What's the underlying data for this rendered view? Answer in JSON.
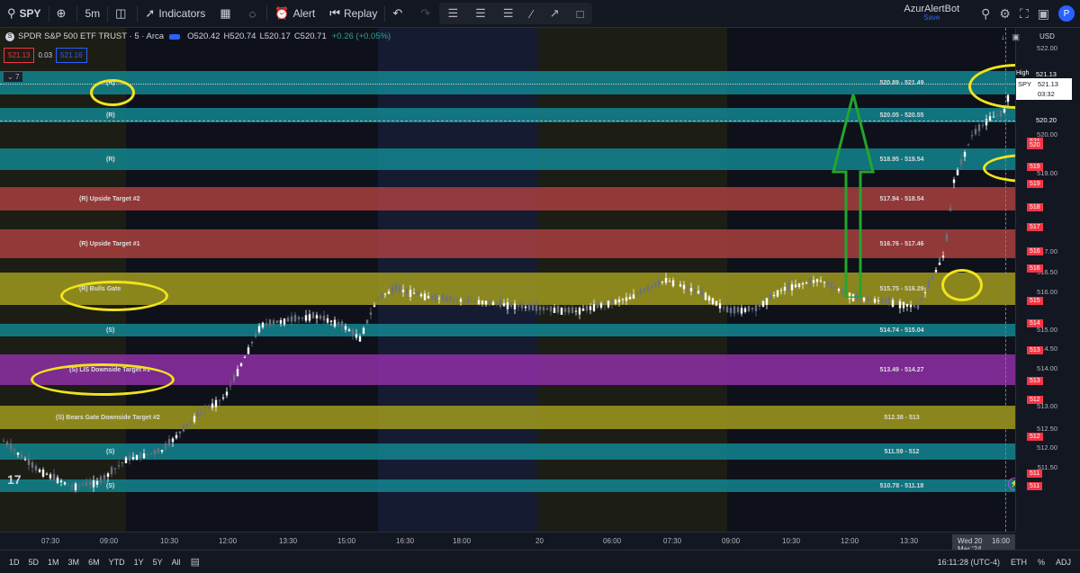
{
  "toolbar": {
    "symbol": "SPY",
    "interval": "5m",
    "indicators_label": "Indicators",
    "alert_label": "Alert",
    "replay_label": "Replay",
    "user_name": "AzurAlertBot",
    "user_sub": "Save"
  },
  "legend": {
    "title": "SPDR S&P 500 ETF TRUST · 5 · Arca",
    "open": "O520.42",
    "high": "H520.74",
    "low": "L520.17",
    "close": "C520.71",
    "change": "+0.26 (+0.05%)",
    "bid": "521.13",
    "spread": "0.03",
    "ask": "521.16",
    "indicator_count": "7"
  },
  "bands": [
    {
      "label": "(R)",
      "range": "520.89 - 521.49",
      "color": "#12858f",
      "top": 48,
      "height": 26
    },
    {
      "label": "(R)",
      "range": "520.05 - 520.55",
      "color": "#12858f",
      "top": 89,
      "height": 16
    },
    {
      "label": "(R)",
      "range": "518.95 - 519.54",
      "color": "#12858f",
      "top": 134,
      "height": 24
    },
    {
      "label": "(R) Upside Target #2",
      "range": "517.94 - 518.54",
      "color": "#a83f3f",
      "top": 177,
      "height": 26
    },
    {
      "label": "(R) Upside Target #1",
      "range": "516.76 - 517.46",
      "color": "#a83f3f",
      "top": 224,
      "height": 32
    },
    {
      "label": "(R) Bulls Gate",
      "range": "515.75 - 516.29",
      "color": "#a09a1e",
      "top": 272,
      "height": 36
    },
    {
      "label": "(S)",
      "range": "514.74 - 515.04",
      "color": "#12858f",
      "top": 329,
      "height": 14
    },
    {
      "label": "(S) LIS Downside Target #1",
      "range": "513.49 - 514.27",
      "color": "#8e2fa6",
      "top": 363,
      "height": 34
    },
    {
      "label": "(S) Bears Gate Downside Target #2",
      "range": "512.38 - 513",
      "color": "#a09a1e",
      "top": 420,
      "height": 26
    },
    {
      "label": "(S)",
      "range": "511.59 - 512",
      "color": "#12858f",
      "top": 462,
      "height": 18
    },
    {
      "label": "(S)",
      "range": "510.78 - 511.18",
      "color": "#12858f",
      "top": 502,
      "height": 14
    }
  ],
  "price_axis": {
    "currency": "USD",
    "ticks": [
      "522.00",
      "520.00",
      "519.00",
      "517.00",
      "516.50",
      "516.00",
      "515.00",
      "514.50",
      "514.00",
      "513.00",
      "512.50",
      "512.00",
      "511.50"
    ],
    "badges": [
      "521",
      "520",
      "519",
      "519",
      "518",
      "517",
      "516",
      "516",
      "515",
      "514",
      "513",
      "513",
      "512",
      "512",
      "511",
      "511"
    ],
    "last_price": "521.13",
    "last_label": "SPY",
    "countdown": "03:32",
    "high_label": "High",
    "high_value": "521.13",
    "line_price": "520.20"
  },
  "time_axis": {
    "ticks": [
      "07:30",
      "09:00",
      "10:30",
      "12:00",
      "13:30",
      "15:00",
      "16:30",
      "18:00",
      "20",
      "06:00",
      "07:30",
      "09:00",
      "10:30",
      "12:00",
      "13:30"
    ],
    "cursor_date": "Wed 20 Mar '24",
    "cursor_time": "16:00"
  },
  "bottom": {
    "ranges": [
      "1D",
      "5D",
      "1M",
      "3M",
      "6M",
      "YTD",
      "1Y",
      "5Y",
      "All"
    ],
    "clock": "16:11:28 (UTC-4)",
    "session": "ETH",
    "pct": "%",
    "adj": "ADJ"
  },
  "colors": {
    "teal": "#12858f",
    "red": "#a83f3f",
    "olive": "#a09a1e",
    "purple": "#8e2fa6",
    "annotation": "#f0e31e",
    "arrow": "#22a62e",
    "candle_up": "#ffffff",
    "candle_down": "#6b7280"
  }
}
